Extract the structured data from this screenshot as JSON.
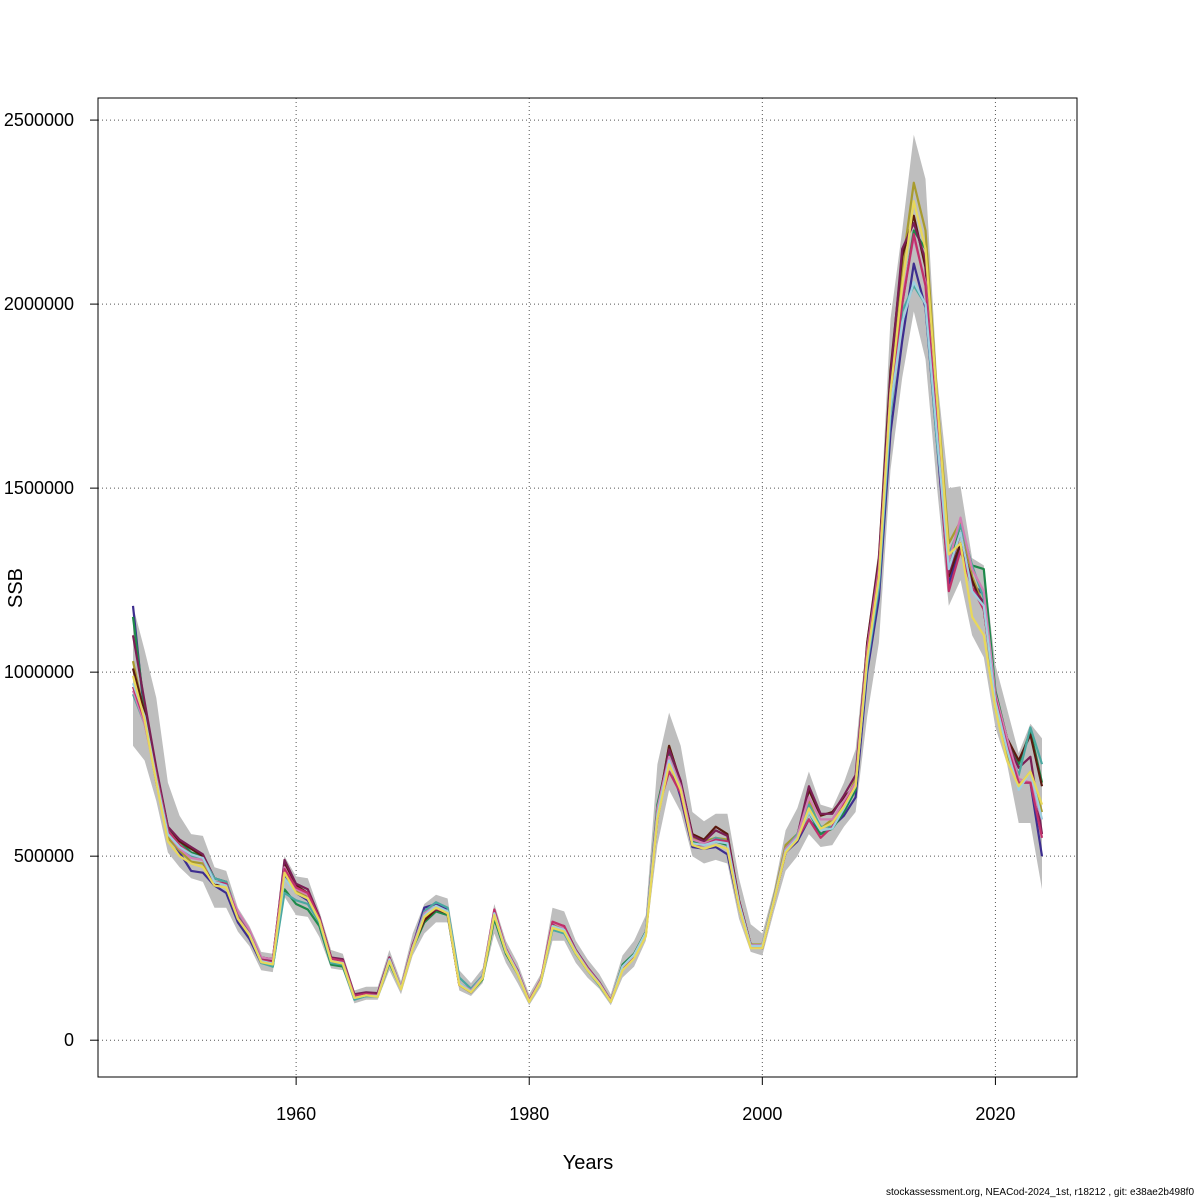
{
  "chart_data": {
    "type": "line",
    "xlabel": "Years",
    "ylabel": "SSB",
    "xlim": [
      1943,
      2027
    ],
    "ylim": [
      -100000,
      2560000
    ],
    "x_ticks": [
      1960,
      1980,
      2000,
      2020
    ],
    "y_ticks": [
      0,
      500000,
      1000000,
      1500000,
      2000000,
      2500000
    ],
    "x_tick_labels": [
      "1960",
      "1980",
      "2000",
      "2020"
    ],
    "y_tick_labels": [
      "0",
      "500000",
      "1000000",
      "1500000",
      "2000000",
      "2500000"
    ],
    "grid": true,
    "band_color": "#bebebe",
    "band": {
      "x": [
        1946,
        1947,
        1948,
        1949,
        1950,
        1951,
        1952,
        1953,
        1954,
        1955,
        1956,
        1957,
        1958,
        1959,
        1960,
        1961,
        1962,
        1963,
        1964,
        1965,
        1966,
        1967,
        1968,
        1969,
        1970,
        1971,
        1972,
        1973,
        1974,
        1975,
        1976,
        1977,
        1978,
        1979,
        1980,
        1981,
        1982,
        1983,
        1984,
        1985,
        1986,
        1987,
        1988,
        1989,
        1990,
        1991,
        1992,
        1993,
        1994,
        1995,
        1996,
        1997,
        1998,
        1999,
        2000,
        2001,
        2002,
        2003,
        2004,
        2005,
        2006,
        2007,
        2008,
        2009,
        2010,
        2011,
        2012,
        2013,
        2014,
        2015,
        2016,
        2017,
        2018,
        2019,
        2020,
        2021,
        2022,
        2023,
        2024
      ],
      "lower": [
        800000,
        760000,
        650000,
        510000,
        470000,
        440000,
        430000,
        360000,
        360000,
        295000,
        255000,
        190000,
        185000,
        390000,
        340000,
        335000,
        280000,
        195000,
        190000,
        100000,
        110000,
        110000,
        190000,
        125000,
        230000,
        290000,
        320000,
        320000,
        135000,
        120000,
        155000,
        290000,
        210000,
        155000,
        95000,
        145000,
        270000,
        270000,
        210000,
        170000,
        140000,
        95000,
        170000,
        200000,
        270000,
        530000,
        680000,
        620000,
        500000,
        480000,
        490000,
        480000,
        330000,
        240000,
        230000,
        350000,
        460000,
        500000,
        560000,
        525000,
        530000,
        580000,
        620000,
        880000,
        1080000,
        1550000,
        1800000,
        1980000,
        1850000,
        1500000,
        1180000,
        1250000,
        1100000,
        1040000,
        850000,
        750000,
        590000,
        590000,
        410000
      ],
      "upper": [
        1180000,
        1060000,
        930000,
        700000,
        610000,
        560000,
        555000,
        470000,
        460000,
        360000,
        310000,
        240000,
        235000,
        500000,
        445000,
        440000,
        350000,
        245000,
        235000,
        135000,
        145000,
        145000,
        245000,
        160000,
        290000,
        370000,
        395000,
        385000,
        190000,
        155000,
        195000,
        370000,
        270000,
        210000,
        125000,
        180000,
        360000,
        350000,
        270000,
        220000,
        180000,
        125000,
        230000,
        270000,
        340000,
        750000,
        890000,
        800000,
        620000,
        595000,
        615000,
        615000,
        440000,
        315000,
        290000,
        410000,
        570000,
        630000,
        730000,
        640000,
        630000,
        700000,
        790000,
        1100000,
        1340000,
        1960000,
        2200000,
        2460000,
        2340000,
        1800000,
        1500000,
        1505000,
        1310000,
        1290000,
        1020000,
        900000,
        780000,
        860000,
        820000
      ]
    },
    "series": [
      {
        "color": "#3d2d8f",
        "values": [
          1180000,
          880000,
          700000,
          560000,
          510000,
          460000,
          455000,
          420000,
          400000,
          320000,
          275000,
          210000,
          205000,
          450000,
          400000,
          380000,
          320000,
          215000,
          210000,
          115000,
          125000,
          120000,
          215000,
          140000,
          255000,
          360000,
          370000,
          355000,
          155000,
          130000,
          170000,
          340000,
          245000,
          190000,
          105000,
          160000,
          310000,
          295000,
          240000,
          195000,
          155000,
          105000,
          200000,
          230000,
          290000,
          600000,
          760000,
          660000,
          525000,
          520000,
          525000,
          505000,
          360000,
          255000,
          255000,
          380000,
          510000,
          540000,
          600000,
          560000,
          580000,
          610000,
          660000,
          1000000,
          1200000,
          1650000,
          1900000,
          2110000,
          1990000,
          1620000,
          1240000,
          1340000,
          1240000,
          1210000,
          920000,
          800000,
          700000,
          700000,
          500000
        ]
      },
      {
        "color": "#1e8a4a",
        "values": [
          1150000,
          900000,
          730000,
          580000,
          540000,
          510000,
          500000,
          440000,
          430000,
          330000,
          285000,
          220000,
          200000,
          410000,
          370000,
          355000,
          310000,
          205000,
          200000,
          115000,
          120000,
          120000,
          210000,
          140000,
          250000,
          320000,
          350000,
          340000,
          150000,
          130000,
          165000,
          330000,
          235000,
          180000,
          105000,
          160000,
          305000,
          295000,
          235000,
          190000,
          150000,
          105000,
          205000,
          235000,
          295000,
          640000,
          780000,
          690000,
          540000,
          535000,
          540000,
          530000,
          370000,
          255000,
          255000,
          385000,
          520000,
          545000,
          620000,
          560000,
          575000,
          620000,
          680000,
          1050000,
          1250000,
          1720000,
          2000000,
          2200000,
          2150000,
          1680000,
          1300000,
          1400000,
          1290000,
          1280000,
          950000,
          820000,
          750000,
          840000,
          700000
        ]
      },
      {
        "color": "#a89b2e",
        "values": [
          1030000,
          880000,
          720000,
          550000,
          515000,
          485000,
          480000,
          430000,
          425000,
          335000,
          290000,
          220000,
          215000,
          470000,
          405000,
          390000,
          330000,
          220000,
          210000,
          120000,
          125000,
          120000,
          220000,
          140000,
          250000,
          330000,
          360000,
          345000,
          155000,
          135000,
          170000,
          345000,
          245000,
          185000,
          108000,
          165000,
          315000,
          300000,
          240000,
          195000,
          155000,
          108000,
          195000,
          230000,
          290000,
          620000,
          800000,
          700000,
          550000,
          540000,
          550000,
          545000,
          375000,
          260000,
          260000,
          390000,
          530000,
          560000,
          650000,
          575000,
          600000,
          640000,
          710000,
          1080000,
          1290000,
          1800000,
          2100000,
          2330000,
          2200000,
          1750000,
          1350000,
          1410000,
          1260000,
          1180000,
          900000,
          780000,
          690000,
          730000,
          620000
        ]
      },
      {
        "color": "#5a1a10",
        "values": [
          1010000,
          890000,
          730000,
          570000,
          540000,
          520000,
          500000,
          420000,
          430000,
          330000,
          285000,
          225000,
          220000,
          480000,
          420000,
          400000,
          330000,
          225000,
          215000,
          120000,
          125000,
          125000,
          220000,
          140000,
          255000,
          325000,
          355000,
          345000,
          150000,
          130000,
          170000,
          345000,
          245000,
          185000,
          105000,
          165000,
          310000,
          300000,
          240000,
          195000,
          155000,
          105000,
          195000,
          225000,
          285000,
          620000,
          800000,
          700000,
          560000,
          545000,
          580000,
          560000,
          380000,
          260000,
          250000,
          380000,
          510000,
          550000,
          680000,
          610000,
          620000,
          660000,
          690000,
          1080000,
          1310000,
          1820000,
          2130000,
          2240000,
          2100000,
          1680000,
          1260000,
          1350000,
          1250000,
          1170000,
          940000,
          820000,
          760000,
          830000,
          690000
        ]
      },
      {
        "color": "#7a1f55",
        "values": [
          1100000,
          920000,
          740000,
          580000,
          545000,
          525000,
          505000,
          440000,
          430000,
          335000,
          290000,
          220000,
          215000,
          490000,
          425000,
          410000,
          335000,
          225000,
          220000,
          125000,
          130000,
          128000,
          225000,
          142000,
          260000,
          340000,
          355000,
          350000,
          152000,
          132000,
          172000,
          350000,
          248000,
          188000,
          107000,
          165000,
          318000,
          310000,
          245000,
          198000,
          158000,
          107000,
          198000,
          232000,
          292000,
          625000,
          790000,
          705000,
          555000,
          540000,
          570000,
          555000,
          378000,
          258000,
          252000,
          382000,
          515000,
          555000,
          690000,
          615000,
          615000,
          665000,
          720000,
          1070000,
          1300000,
          1800000,
          2150000,
          2220000,
          2120000,
          1700000,
          1270000,
          1380000,
          1230000,
          1190000,
          940000,
          810000,
          740000,
          770000,
          560000
        ]
      },
      {
        "color": "#4aa8a0",
        "values": [
          940000,
          860000,
          720000,
          570000,
          530000,
          500000,
          495000,
          440000,
          430000,
          340000,
          290000,
          210000,
          200000,
          400000,
          380000,
          370000,
          320000,
          210000,
          205000,
          110000,
          120000,
          118000,
          215000,
          140000,
          250000,
          350000,
          375000,
          360000,
          170000,
          140000,
          175000,
          340000,
          240000,
          185000,
          105000,
          160000,
          300000,
          290000,
          235000,
          190000,
          150000,
          105000,
          200000,
          230000,
          290000,
          610000,
          760000,
          680000,
          530000,
          530000,
          550000,
          540000,
          370000,
          258000,
          258000,
          385000,
          520000,
          560000,
          640000,
          580000,
          580000,
          640000,
          700000,
          1020000,
          1230000,
          1700000,
          1980000,
          2050000,
          2000000,
          1620000,
          1320000,
          1400000,
          1290000,
          1200000,
          900000,
          800000,
          720000,
          850000,
          750000
        ]
      },
      {
        "color": "#d17eb3",
        "values": [
          950000,
          860000,
          710000,
          560000,
          520000,
          495000,
          490000,
          430000,
          420000,
          350000,
          300000,
          225000,
          220000,
          470000,
          410000,
          395000,
          330000,
          220000,
          215000,
          120000,
          125000,
          122000,
          222000,
          142000,
          255000,
          345000,
          365000,
          350000,
          155000,
          135000,
          172000,
          350000,
          250000,
          188000,
          107000,
          165000,
          320000,
          305000,
          242000,
          196000,
          156000,
          107000,
          200000,
          232000,
          292000,
          630000,
          770000,
          690000,
          545000,
          535000,
          545000,
          535000,
          372000,
          258000,
          258000,
          384000,
          520000,
          555000,
          660000,
          600000,
          600000,
          650000,
          700000,
          1060000,
          1280000,
          1760000,
          2020000,
          2180000,
          2060000,
          1670000,
          1300000,
          1420000,
          1280000,
          1220000,
          940000,
          820000,
          710000,
          700000,
          600000
        ]
      },
      {
        "color": "#c0306a",
        "values": [
          960000,
          870000,
          720000,
          570000,
          530000,
          505000,
          495000,
          430000,
          425000,
          335000,
          290000,
          218000,
          212000,
          465000,
          415000,
          400000,
          330000,
          222000,
          215000,
          120000,
          126000,
          122000,
          222000,
          140000,
          255000,
          340000,
          360000,
          345000,
          150000,
          132000,
          170000,
          355000,
          248000,
          188000,
          107000,
          163000,
          322000,
          310000,
          240000,
          195000,
          155000,
          107000,
          198000,
          230000,
          290000,
          620000,
          730000,
          670000,
          530000,
          530000,
          545000,
          540000,
          375000,
          255000,
          252000,
          380000,
          515000,
          550000,
          600000,
          550000,
          580000,
          640000,
          690000,
          1050000,
          1270000,
          1750000,
          2000000,
          2190000,
          2050000,
          1660000,
          1220000,
          1330000,
          1230000,
          1170000,
          930000,
          800000,
          700000,
          700000,
          550000
        ]
      },
      {
        "color": "#9ecfe0",
        "values": [
          970000,
          880000,
          710000,
          560000,
          525000,
          505000,
          495000,
          430000,
          420000,
          330000,
          288000,
          215000,
          208000,
          440000,
          400000,
          385000,
          325000,
          215000,
          210000,
          115000,
          122000,
          120000,
          220000,
          140000,
          252000,
          340000,
          365000,
          350000,
          155000,
          132000,
          170000,
          345000,
          245000,
          185000,
          105000,
          162000,
          310000,
          300000,
          240000,
          193000,
          154000,
          105000,
          200000,
          232000,
          292000,
          615000,
          760000,
          680000,
          535000,
          530000,
          540000,
          535000,
          372000,
          256000,
          256000,
          382000,
          515000,
          550000,
          620000,
          570000,
          575000,
          630000,
          690000,
          1030000,
          1250000,
          1720000,
          1950000,
          2060000,
          2000000,
          1640000,
          1280000,
          1380000,
          1220000,
          1180000,
          920000,
          790000,
          680000,
          730000,
          600000
        ]
      },
      {
        "color": "#e8d85a",
        "values": [
          990000,
          870000,
          700000,
          540000,
          500000,
          480000,
          470000,
          420000,
          415000,
          330000,
          285000,
          212000,
          206000,
          455000,
          400000,
          385000,
          325000,
          215000,
          208000,
          115000,
          122000,
          118000,
          215000,
          138000,
          248000,
          335000,
          360000,
          345000,
          150000,
          130000,
          168000,
          340000,
          240000,
          180000,
          104000,
          160000,
          305000,
          295000,
          236000,
          190000,
          152000,
          104000,
          190000,
          222000,
          282000,
          600000,
          750000,
          680000,
          530000,
          520000,
          530000,
          520000,
          360000,
          250000,
          250000,
          378000,
          510000,
          545000,
          630000,
          575000,
          590000,
          635000,
          690000,
          1040000,
          1260000,
          1760000,
          2050000,
          2280000,
          2150000,
          1740000,
          1320000,
          1350000,
          1150000,
          1100000,
          900000,
          760000,
          690000,
          730000,
          640000
        ]
      }
    ]
  },
  "footer": {
    "text": "stockassessment.org, NEACod-2024_1st, r18212 , git: e38ae2b498f0"
  }
}
